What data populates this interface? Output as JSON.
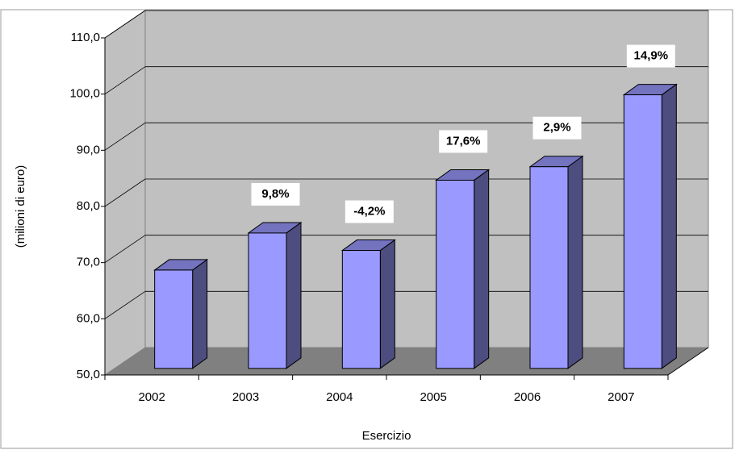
{
  "chart_data": {
    "type": "bar3d",
    "categories": [
      "2002",
      "2003",
      "2004",
      "2005",
      "2006",
      "2007"
    ],
    "values": [
      67.5,
      74.1,
      71.0,
      83.5,
      85.9,
      98.7
    ],
    "growth_labels": [
      null,
      "9,8%",
      "-4,2%",
      "17,6%",
      "2,9%",
      "14,9%"
    ],
    "color": "#9999ff",
    "ylabel": "(milioni di euro)",
    "xlabel": "Esercizio",
    "ylim": [
      50,
      110
    ],
    "yticks": [
      {
        "value": 50,
        "label": "50,0"
      },
      {
        "value": 60,
        "label": "60,0"
      },
      {
        "value": 70,
        "label": "70,0"
      },
      {
        "value": 80,
        "label": "80,0"
      },
      {
        "value": 90,
        "label": "90,0"
      },
      {
        "value": 100,
        "label": "100,0"
      },
      {
        "value": 110,
        "label": "110,0"
      }
    ],
    "grid": true
  }
}
